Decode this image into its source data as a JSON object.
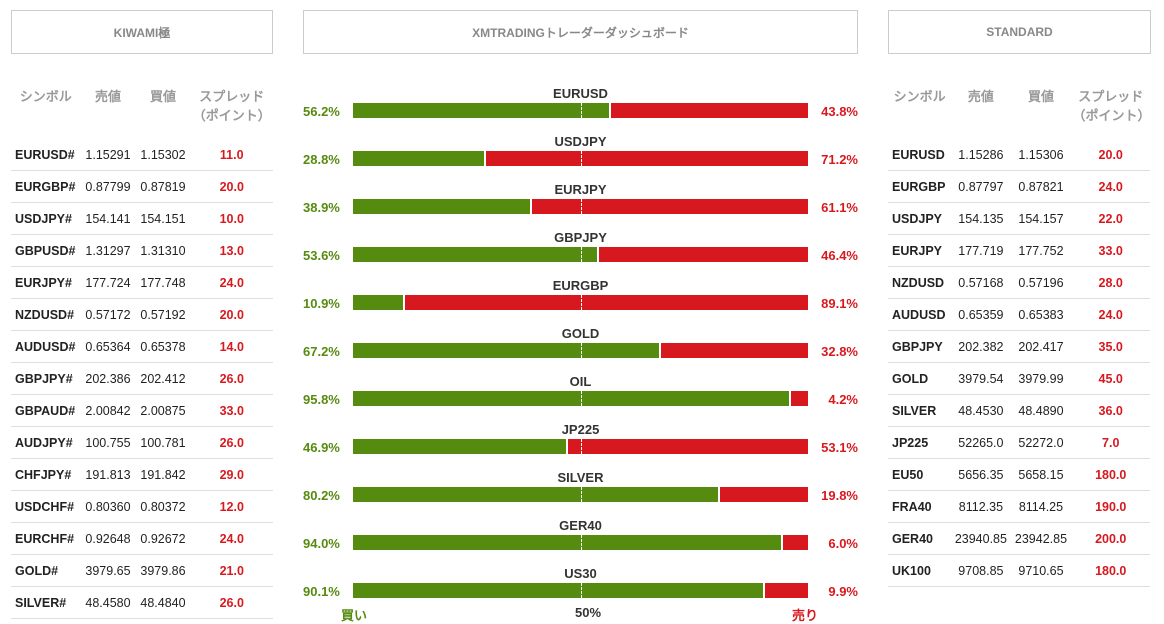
{
  "left": {
    "title": "KIWAMI極",
    "headers": [
      "シンボル",
      "売値",
      "買値",
      "スプレッド（ポイント）"
    ],
    "rows": [
      [
        "EURUSD#",
        "1.15291",
        "1.15302",
        "11.0"
      ],
      [
        "EURGBP#",
        "0.87799",
        "0.87819",
        "20.0"
      ],
      [
        "USDJPY#",
        "154.141",
        "154.151",
        "10.0"
      ],
      [
        "GBPUSD#",
        "1.31297",
        "1.31310",
        "13.0"
      ],
      [
        "EURJPY#",
        "177.724",
        "177.748",
        "24.0"
      ],
      [
        "NZDUSD#",
        "0.57172",
        "0.57192",
        "20.0"
      ],
      [
        "AUDUSD#",
        "0.65364",
        "0.65378",
        "14.0"
      ],
      [
        "GBPJPY#",
        "202.386",
        "202.412",
        "26.0"
      ],
      [
        "GBPAUD#",
        "2.00842",
        "2.00875",
        "33.0"
      ],
      [
        "AUDJPY#",
        "100.755",
        "100.781",
        "26.0"
      ],
      [
        "CHFJPY#",
        "191.813",
        "191.842",
        "29.0"
      ],
      [
        "USDCHF#",
        "0.80360",
        "0.80372",
        "12.0"
      ],
      [
        "EURCHF#",
        "0.92648",
        "0.92672",
        "24.0"
      ],
      [
        "GOLD#",
        "3979.65",
        "3979.86",
        "21.0"
      ],
      [
        "SILVER#",
        "48.4580",
        "48.4840",
        "26.0"
      ]
    ]
  },
  "center": {
    "title": "XMTRADINGトレーダーダッシュボード",
    "buy_label": "買い",
    "mid_label": "50%",
    "sell_label": "売り",
    "pairs": [
      {
        "name": "EURUSD",
        "buy": "56.2%",
        "sell": "43.8%",
        "buy_pct": 56.2
      },
      {
        "name": "USDJPY",
        "buy": "28.8%",
        "sell": "71.2%",
        "buy_pct": 28.8
      },
      {
        "name": "EURJPY",
        "buy": "38.9%",
        "sell": "61.1%",
        "buy_pct": 38.9
      },
      {
        "name": "GBPJPY",
        "buy": "53.6%",
        "sell": "46.4%",
        "buy_pct": 53.6
      },
      {
        "name": "EURGBP",
        "buy": "10.9%",
        "sell": "89.1%",
        "buy_pct": 10.9
      },
      {
        "name": "GOLD",
        "buy": "67.2%",
        "sell": "32.8%",
        "buy_pct": 67.2
      },
      {
        "name": "OIL",
        "buy": "95.8%",
        "sell": "4.2%",
        "buy_pct": 95.8
      },
      {
        "name": "JP225",
        "buy": "46.9%",
        "sell": "53.1%",
        "buy_pct": 46.9
      },
      {
        "name": "SILVER",
        "buy": "80.2%",
        "sell": "19.8%",
        "buy_pct": 80.2
      },
      {
        "name": "GER40",
        "buy": "94.0%",
        "sell": "6.0%",
        "buy_pct": 94.0
      },
      {
        "name": "US30",
        "buy": "90.1%",
        "sell": "9.9%",
        "buy_pct": 90.1
      }
    ]
  },
  "right": {
    "title": "STANDARD",
    "headers": [
      "シンボル",
      "売値",
      "買値",
      "スプレッド（ポイント）"
    ],
    "rows": [
      [
        "EURUSD",
        "1.15286",
        "1.15306",
        "20.0"
      ],
      [
        "EURGBP",
        "0.87797",
        "0.87821",
        "24.0"
      ],
      [
        "USDJPY",
        "154.135",
        "154.157",
        "22.0"
      ],
      [
        "EURJPY",
        "177.719",
        "177.752",
        "33.0"
      ],
      [
        "NZDUSD",
        "0.57168",
        "0.57196",
        "28.0"
      ],
      [
        "AUDUSD",
        "0.65359",
        "0.65383",
        "24.0"
      ],
      [
        "GBPJPY",
        "202.382",
        "202.417",
        "35.0"
      ],
      [
        "GOLD",
        "3979.54",
        "3979.99",
        "45.0"
      ],
      [
        "SILVER",
        "48.4530",
        "48.4890",
        "36.0"
      ],
      [
        "JP225",
        "52265.0",
        "52272.0",
        "7.0"
      ],
      [
        "EU50",
        "5656.35",
        "5658.15",
        "180.0"
      ],
      [
        "FRA40",
        "8112.35",
        "8114.25",
        "190.0"
      ],
      [
        "GER40",
        "23940.85",
        "23942.85",
        "200.0"
      ],
      [
        "UK100",
        "9708.85",
        "9710.65",
        "180.0"
      ]
    ]
  }
}
